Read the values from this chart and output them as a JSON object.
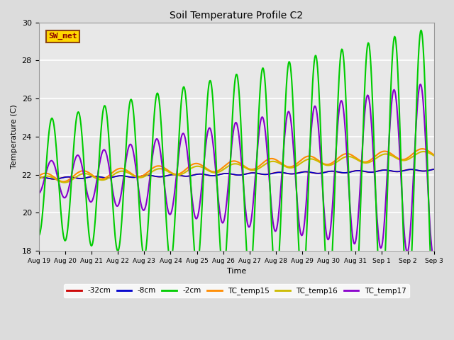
{
  "title": "Soil Temperature Profile C2",
  "xlabel": "Time",
  "ylabel": "Temperature (C)",
  "ylim": [
    18,
    30
  ],
  "annotation": "SW_met",
  "annotation_color": "#8B0000",
  "annotation_bg": "#FFD700",
  "annotation_edge": "#8B4513",
  "background_color": "#E8E8E8",
  "fig_bg": "#DCDCDC",
  "grid_color": "white",
  "series": {
    "-32cm": {
      "color": "#CC0000",
      "lw": 1.2
    },
    "-8cm": {
      "color": "#0000CC",
      "lw": 1.2
    },
    "-2cm": {
      "color": "#00CC00",
      "lw": 1.5
    },
    "TC_temp15": {
      "color": "#FF8C00",
      "lw": 1.5
    },
    "TC_temp16": {
      "color": "#CCBB00",
      "lw": 1.5
    },
    "TC_temp17": {
      "color": "#8800CC",
      "lw": 1.5
    }
  },
  "xtick_labels": [
    "Aug 19",
    "Aug 20",
    "Aug 21",
    "Aug 22",
    "Aug 23",
    "Aug 24",
    "Aug 25",
    "Aug 26",
    "Aug 27",
    "Aug 28",
    "Aug 29",
    "Aug 30",
    "Aug 31",
    "Sep 1",
    "Sep 2",
    "Sep 3"
  ],
  "ytick_values": [
    18,
    20,
    22,
    24,
    26,
    28,
    30
  ],
  "n_days": 15
}
